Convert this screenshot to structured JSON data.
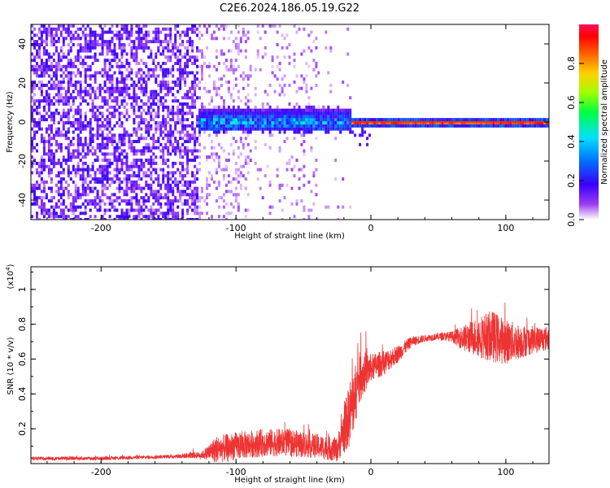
{
  "title": "C2E6.2024.186.05.19.G22",
  "chart_data": [
    {
      "type": "heatmap",
      "xlabel": "Height of straight line (km)",
      "ylabel": "Frequency (Hz)",
      "xlim": [
        -252,
        132
      ],
      "ylim": [
        -50,
        50
      ],
      "xticks": [
        -200,
        -100,
        0,
        100
      ],
      "yticks": [
        -40,
        -20,
        0,
        20,
        40
      ],
      "colorbar": {
        "label": "Normalized spectral amplitude",
        "range": [
          0,
          1
        ],
        "ticks": [
          "0.0",
          "0.2",
          "0.4",
          "0.6",
          "0.8"
        ],
        "colors": [
          "#ffffff",
          "#9a3cf0",
          "#3a00ff",
          "#0070ff",
          "#00e0ff",
          "#00ff40",
          "#a0ff00",
          "#ffd000",
          "#ff6000",
          "#ff0000",
          "#ff1060"
        ]
      },
      "regions": [
        {
          "x_range": [
            -252,
            -128
          ],
          "description_level": 0.15
        },
        {
          "x_range": [
            -128,
            -15
          ],
          "center_hz": 0,
          "band_halfwidth_hz": 6,
          "peak_level": 0.45
        },
        {
          "x_range": [
            -15,
            132
          ],
          "center_hz": 0,
          "band_halfwidth_hz": 2,
          "peak_level": 0.95
        }
      ]
    },
    {
      "type": "line",
      "xlabel": "Height of straight line (km)",
      "ylabel": "SNR (10 * v/v)",
      "y_scale_label": "(x10",
      "y_scale_exp": "4",
      "xlim": [
        -252,
        132
      ],
      "ylim": [
        0,
        1.13
      ],
      "xticks": [
        -200,
        -100,
        0,
        100
      ],
      "yticks": [
        0.2,
        0.4,
        0.6,
        0.8,
        1
      ],
      "color": "#ee3333",
      "series": [
        {
          "x": [
            -252,
            -200,
            -150,
            -125,
            -115,
            -100,
            -80,
            -60,
            -40,
            -25,
            -15,
            -8,
            0,
            10,
            20,
            30,
            40,
            50,
            60,
            70,
            80,
            90,
            100,
            110,
            120,
            132
          ],
          "values": [
            0.03,
            0.03,
            0.04,
            0.05,
            0.08,
            0.1,
            0.12,
            0.12,
            0.1,
            0.08,
            0.3,
            0.5,
            0.55,
            0.58,
            0.63,
            0.7,
            0.72,
            0.73,
            0.73,
            0.72,
            0.73,
            0.73,
            0.7,
            0.7,
            0.71,
            0.72
          ],
          "noise": [
            0.01,
            0.01,
            0.01,
            0.02,
            0.08,
            0.08,
            0.08,
            0.08,
            0.07,
            0.07,
            0.2,
            0.15,
            0.08,
            0.07,
            0.05,
            0.03,
            0.02,
            0.02,
            0.03,
            0.08,
            0.12,
            0.15,
            0.13,
            0.1,
            0.08,
            0.07
          ]
        }
      ]
    }
  ]
}
